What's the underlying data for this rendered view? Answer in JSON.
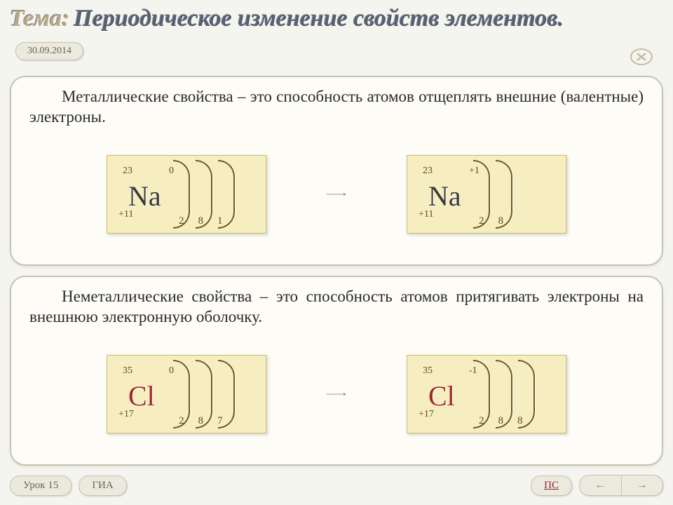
{
  "header": {
    "label": "Тема:",
    "title": "Периодическое изменение свойств элементов.",
    "date": "30.09.2014"
  },
  "panel1": {
    "text": "Металлические свойства – это способность атомов отщеплять внешние (валентные) электроны.",
    "atom_left": {
      "symbol": "Na",
      "color": "#3a3a3a",
      "mass": "23",
      "charge": "0",
      "z": "+11",
      "shells": [
        "2",
        "8",
        "1"
      ],
      "arc_count": 3
    },
    "atom_right": {
      "symbol": "Na",
      "color": "#3a3a3a",
      "mass": "23",
      "charge": "+1",
      "z": "+11",
      "shells": [
        "2",
        "8"
      ],
      "arc_count": 2
    }
  },
  "panel2": {
    "text": "Неметаллические свойства – это способность атомов притягивать электроны на внешнюю электронную оболочку.",
    "atom_left": {
      "symbol": "Cl",
      "color": "#a02828",
      "mass": "35",
      "charge": "0",
      "z": "+17",
      "shells": [
        "2",
        "8",
        "7"
      ],
      "arc_count": 3
    },
    "atom_right": {
      "symbol": "Cl",
      "color": "#a02828",
      "mass": "35",
      "charge": "-1",
      "z": "+17",
      "shells": [
        "2",
        "8",
        "8"
      ],
      "arc_count": 3
    }
  },
  "footer": {
    "lesson": "Урок 15",
    "gia": "ГИА",
    "ps": "ПС"
  },
  "style": {
    "box_bg": "#f6eec0",
    "box_border": "#cbbd7a",
    "arc_color": "#6b5a20",
    "arrow_color": "#7a7a7a",
    "panel_bg": "#fdfcf7",
    "panel_border": "#c8c2ae"
  }
}
